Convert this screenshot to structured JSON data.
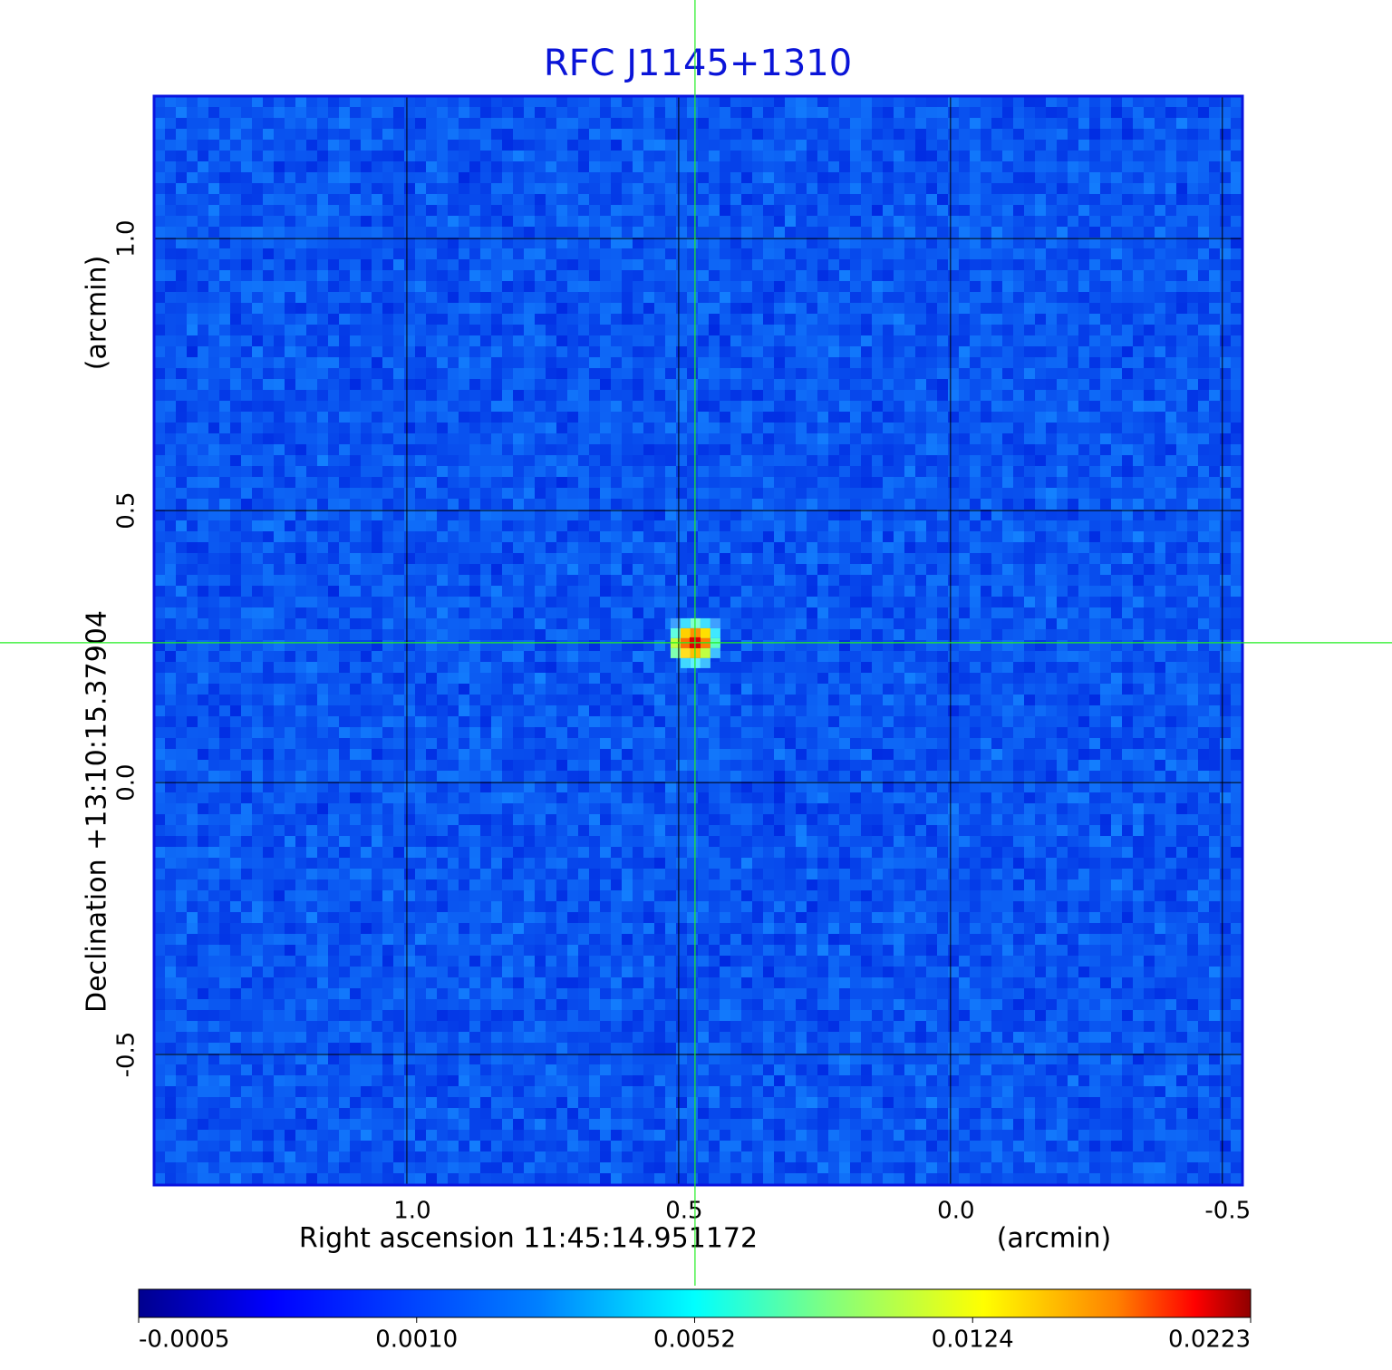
{
  "chart_data": {
    "type": "image",
    "title": "RFC J1145+1310",
    "xlabel": "Right ascension  11:45:14.951172",
    "xunit": "(arcmin)",
    "ylabel": "Declination  +13:10:15.37904",
    "yunit": "(arcmin)",
    "xlim": [
      1.465,
      -0.537
    ],
    "ylim": [
      -0.74,
      1.262
    ],
    "xticks": [
      {
        "value": 1,
        "label": "1.0"
      },
      0.5,
      {
        "value": 0,
        "label": "0.0"
      },
      -0.5
    ],
    "yticks": [
      {
        "value": 1,
        "label": "1.0"
      },
      0.5,
      {
        "value": 0,
        "label": "0.0"
      },
      -0.5
    ],
    "grid": true,
    "source": {
      "x": 0.47,
      "y": 0.257,
      "peak": 0.0223
    },
    "colorbar_ticks": [
      -0.0005,
      {
        "value": 0.001,
        "label": "0.0010"
      },
      0.0052,
      0.0124,
      0.0223
    ],
    "title_color": "#0a14d8",
    "crosshair_color": "#22ee22"
  }
}
